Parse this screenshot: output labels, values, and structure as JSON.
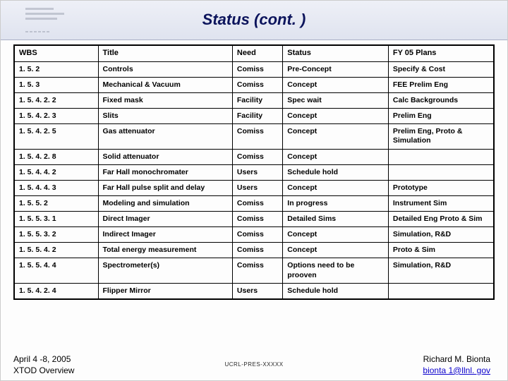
{
  "slide": {
    "title": "Status (cont. )",
    "background_color": "#fdfdfd",
    "banner_gradient": [
      "#eef0f7",
      "#dfe3ef"
    ],
    "title_color": "#0c145c",
    "title_fontsize": 22
  },
  "table": {
    "border_color": "#000000",
    "cell_fontsize": 10.5,
    "header_fontsize": 11,
    "columns": [
      {
        "key": "wbs",
        "label": "WBS",
        "width_pct": 17.5
      },
      {
        "key": "title",
        "label": "Title",
        "width_pct": 28
      },
      {
        "key": "need",
        "label": "Need",
        "width_pct": 10.5
      },
      {
        "key": "status",
        "label": "Status",
        "width_pct": 22
      },
      {
        "key": "plans",
        "label": "FY 05 Plans",
        "width_pct": 22
      }
    ],
    "rows": [
      [
        "1. 5. 2",
        "Controls",
        "Comiss",
        "Pre-Concept",
        "Specify & Cost"
      ],
      [
        "1. 5. 3",
        "Mechanical & Vacuum",
        "Comiss",
        "Concept",
        "FEE Prelim Eng"
      ],
      [
        "1. 5. 4. 2. 2",
        "Fixed mask",
        "Facility",
        "Spec wait",
        "Calc Backgrounds"
      ],
      [
        "1. 5. 4. 2. 3",
        "Slits",
        "Facility",
        "Concept",
        "Prelim Eng"
      ],
      [
        "1. 5. 4. 2. 5",
        "Gas attenuator",
        "Comiss",
        "Concept",
        "Prelim Eng, Proto & Simulation"
      ],
      [
        "1. 5. 4. 2. 8",
        "Solid attenuator",
        "Comiss",
        "Concept",
        ""
      ],
      [
        "1. 5. 4. 4. 2",
        "Far Hall monochromater",
        "Users",
        "Schedule hold",
        ""
      ],
      [
        "1. 5. 4. 4. 3",
        "Far Hall pulse split and delay",
        "Users",
        "Concept",
        "Prototype"
      ],
      [
        "1. 5. 5. 2",
        "Modeling and simulation",
        "Comiss",
        "In progress",
        "Instrument Sim"
      ],
      [
        "1. 5. 5. 3. 1",
        "Direct Imager",
        "Comiss",
        "Detailed Sims",
        "Detailed Eng Proto & Sim"
      ],
      [
        "1. 5. 5. 3. 2",
        "Indirect Imager",
        "Comiss",
        "Concept",
        "Simulation, R&D"
      ],
      [
        "1. 5. 5. 4. 2",
        "Total energy measurement",
        "Comiss",
        "Concept",
        "Proto & Sim"
      ],
      [
        "1. 5. 5. 4. 4",
        "Spectrometer(s)",
        "Comiss",
        "Options need to be prooven",
        "Simulation, R&D"
      ],
      [
        "1. 5. 4. 2. 4",
        "Flipper Mirror",
        "Users",
        "Schedule hold",
        ""
      ]
    ]
  },
  "footer": {
    "date": "April 4 -8, 2005",
    "subtitle": "XTOD  Overview",
    "doc_id": "UCRL-PRES-XXXXX",
    "author": "Richard M. Bionta",
    "email": "bionta 1@llnl. gov",
    "email_color": "#0b00cc"
  }
}
